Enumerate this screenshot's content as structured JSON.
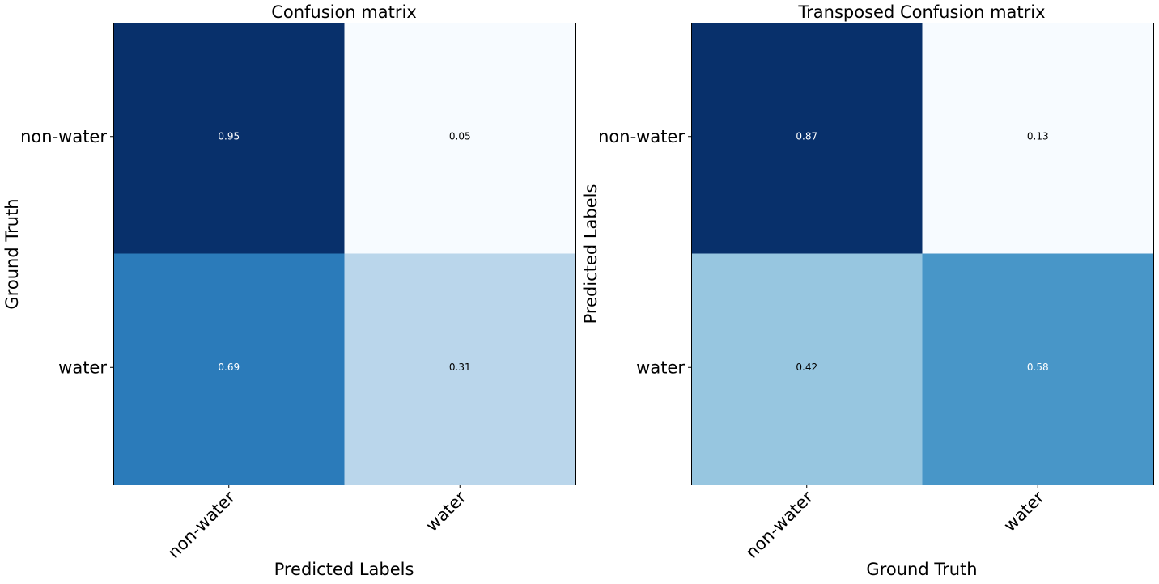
{
  "chart_data": [
    {
      "type": "heatmap",
      "title": "Confusion matrix",
      "xlabel": "Predicted Labels",
      "ylabel": "Ground Truth",
      "x_categories": [
        "non-water",
        "water"
      ],
      "y_categories": [
        "non-water",
        "water"
      ],
      "values": [
        [
          0.95,
          0.05
        ],
        [
          0.69,
          0.31
        ]
      ],
      "colormap": "Blues",
      "grid": false
    },
    {
      "type": "heatmap",
      "title": "Transposed Confusion matrix",
      "xlabel": "Ground Truth",
      "ylabel": "Predicted Labels",
      "x_categories": [
        "non-water",
        "water"
      ],
      "y_categories": [
        "non-water",
        "water"
      ],
      "values": [
        [
          0.87,
          0.13
        ],
        [
          0.42,
          0.58
        ]
      ],
      "colormap": "Blues",
      "grid": false
    }
  ]
}
